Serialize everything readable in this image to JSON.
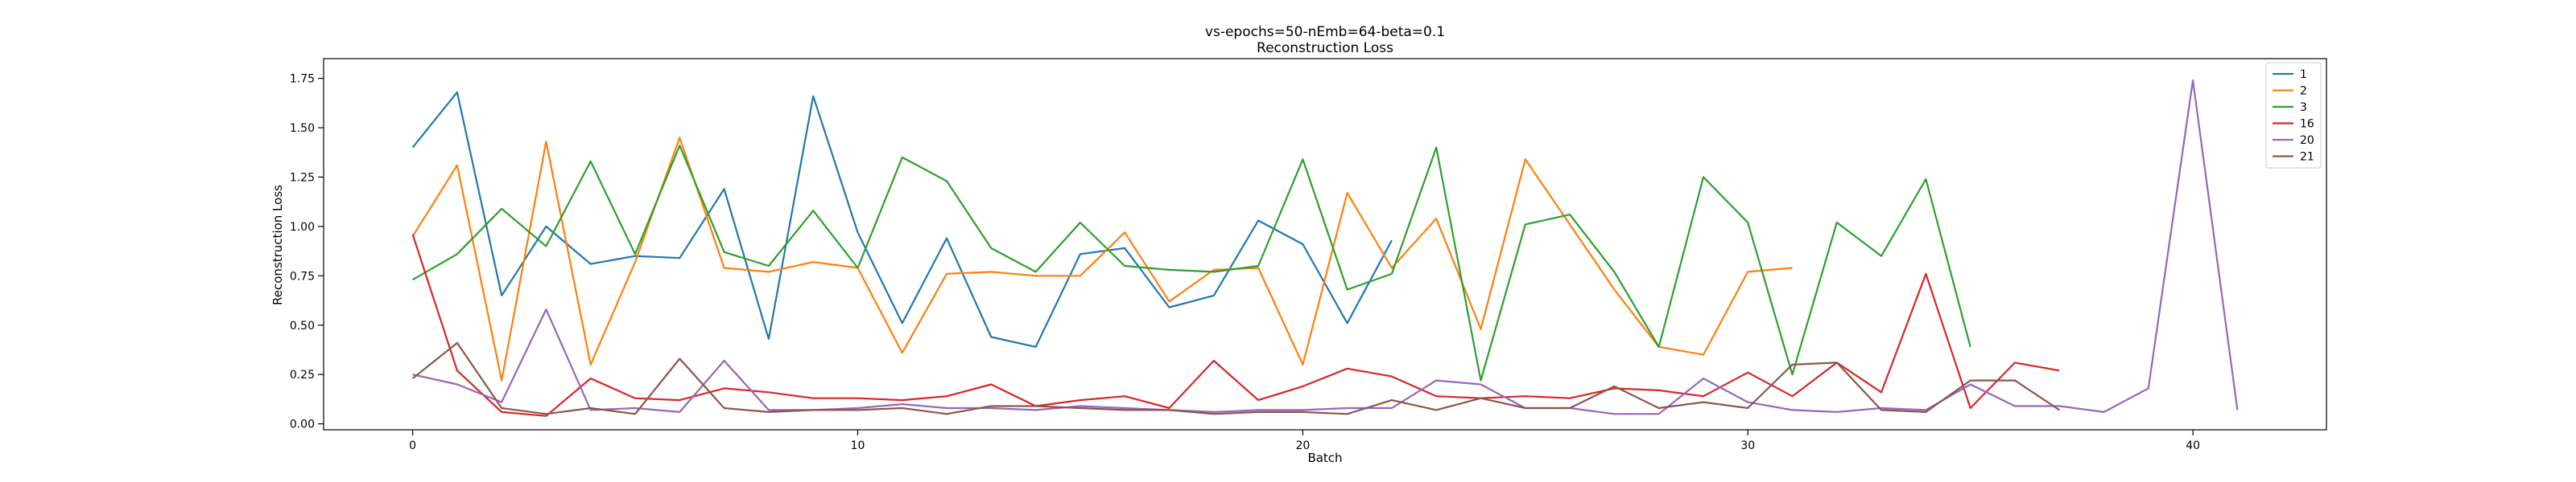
{
  "chart_data": {
    "type": "line",
    "title": "vs-epochs=50-nEmb=64-beta=0.1",
    "subtitle": "Reconstruction Loss",
    "xlabel": "Batch",
    "ylabel": "Reconstruction Loss",
    "xlim": [
      -2,
      43
    ],
    "ylim": [
      -0.03,
      1.85
    ],
    "xticks": [
      0,
      10,
      20,
      30,
      40
    ],
    "yticks": [
      0.0,
      0.25,
      0.5,
      0.75,
      1.0,
      1.25,
      1.5,
      1.75
    ],
    "ytick_labels": [
      "0.00",
      "0.25",
      "0.50",
      "0.75",
      "1.00",
      "1.25",
      "1.50",
      "1.75"
    ],
    "grid": false,
    "legend_position": "top-right",
    "series": [
      {
        "name": "1",
        "color": "#1f77b4",
        "x": [
          0,
          1,
          2,
          3,
          4,
          5,
          6,
          7,
          8,
          9,
          10,
          11,
          12,
          13,
          14,
          15,
          16,
          17,
          18,
          19,
          20,
          21,
          22
        ],
        "y": [
          1.4,
          1.68,
          0.65,
          1.0,
          0.81,
          0.85,
          0.84,
          1.19,
          0.43,
          1.66,
          0.97,
          0.51,
          0.94,
          0.44,
          0.39,
          0.86,
          0.89,
          0.59,
          0.65,
          1.03,
          0.91,
          0.51,
          0.93
        ]
      },
      {
        "name": "2",
        "color": "#ff7f0e",
        "x": [
          0,
          1,
          2,
          3,
          4,
          5,
          6,
          7,
          8,
          9,
          10,
          11,
          12,
          13,
          14,
          15,
          16,
          17,
          18,
          19,
          20,
          21,
          22,
          23,
          24,
          25,
          26,
          27,
          28,
          29,
          30,
          31
        ],
        "y": [
          0.95,
          1.31,
          0.22,
          1.43,
          0.3,
          0.82,
          1.45,
          0.79,
          0.77,
          0.82,
          0.79,
          0.36,
          0.76,
          0.77,
          0.75,
          0.75,
          0.97,
          0.62,
          0.78,
          0.79,
          0.3,
          1.17,
          0.79,
          1.04,
          0.48,
          1.34,
          1.01,
          0.68,
          0.39,
          0.35,
          0.77,
          0.79
        ]
      },
      {
        "name": "3",
        "color": "#2ca02c",
        "x": [
          0,
          1,
          2,
          3,
          4,
          5,
          6,
          7,
          8,
          9,
          10,
          11,
          12,
          13,
          14,
          15,
          16,
          17,
          18,
          19,
          20,
          21,
          22,
          23,
          24,
          25,
          26,
          27,
          28,
          29,
          30,
          31,
          32,
          33,
          34,
          35
        ],
        "y": [
          0.73,
          0.86,
          1.09,
          0.9,
          1.33,
          0.86,
          1.41,
          0.87,
          0.8,
          1.08,
          0.79,
          1.35,
          1.23,
          0.89,
          0.77,
          1.02,
          0.8,
          0.78,
          0.77,
          0.8,
          1.34,
          0.68,
          0.76,
          1.4,
          0.22,
          1.01,
          1.06,
          0.77,
          0.39,
          1.25,
          1.02,
          0.25,
          1.02,
          0.85,
          1.24,
          0.39
        ]
      },
      {
        "name": "16",
        "color": "#d62728",
        "x": [
          0,
          1,
          2,
          3,
          4,
          5,
          6,
          7,
          8,
          9,
          10,
          11,
          12,
          13,
          14,
          15,
          16,
          17,
          18,
          19,
          20,
          21,
          22,
          23,
          24,
          25,
          26,
          27,
          28,
          29,
          30,
          31,
          32,
          33,
          34,
          35,
          36,
          37
        ],
        "y": [
          0.96,
          0.27,
          0.06,
          0.04,
          0.23,
          0.13,
          0.12,
          0.18,
          0.16,
          0.13,
          0.13,
          0.12,
          0.14,
          0.2,
          0.09,
          0.12,
          0.14,
          0.08,
          0.32,
          0.12,
          0.19,
          0.28,
          0.24,
          0.14,
          0.13,
          0.14,
          0.13,
          0.18,
          0.17,
          0.14,
          0.26,
          0.14,
          0.31,
          0.16,
          0.76,
          0.08,
          0.31,
          0.27
        ]
      },
      {
        "name": "20",
        "color": "#9467bd",
        "x": [
          0,
          1,
          2,
          3,
          4,
          5,
          6,
          7,
          8,
          9,
          10,
          11,
          12,
          13,
          14,
          15,
          16,
          17,
          18,
          19,
          20,
          21,
          22,
          23,
          24,
          25,
          26,
          27,
          28,
          29,
          30,
          31,
          32,
          33,
          34,
          35,
          36,
          37,
          38,
          39,
          40,
          41
        ],
        "y": [
          0.25,
          0.2,
          0.11,
          0.58,
          0.07,
          0.08,
          0.06,
          0.32,
          0.07,
          0.07,
          0.08,
          0.1,
          0.08,
          0.08,
          0.07,
          0.09,
          0.08,
          0.07,
          0.06,
          0.07,
          0.07,
          0.08,
          0.08,
          0.22,
          0.2,
          0.08,
          0.08,
          0.05,
          0.05,
          0.23,
          0.11,
          0.07,
          0.06,
          0.08,
          0.07,
          0.2,
          0.09,
          0.09,
          0.06,
          0.18,
          1.74,
          0.07
        ]
      },
      {
        "name": "21",
        "color": "#8c564b",
        "x": [
          0,
          1,
          2,
          3,
          4,
          5,
          6,
          7,
          8,
          9,
          10,
          11,
          12,
          13,
          14,
          15,
          16,
          17,
          18,
          19,
          20,
          21,
          22,
          23,
          24,
          25,
          26,
          27,
          28,
          29,
          30,
          31,
          32,
          33,
          34,
          35,
          36,
          37
        ],
        "y": [
          0.23,
          0.41,
          0.08,
          0.05,
          0.08,
          0.05,
          0.33,
          0.08,
          0.06,
          0.07,
          0.07,
          0.08,
          0.05,
          0.09,
          0.09,
          0.08,
          0.07,
          0.07,
          0.05,
          0.06,
          0.06,
          0.05,
          0.12,
          0.07,
          0.13,
          0.08,
          0.08,
          0.19,
          0.08,
          0.11,
          0.08,
          0.3,
          0.31,
          0.07,
          0.06,
          0.22,
          0.22,
          0.07
        ]
      }
    ]
  }
}
